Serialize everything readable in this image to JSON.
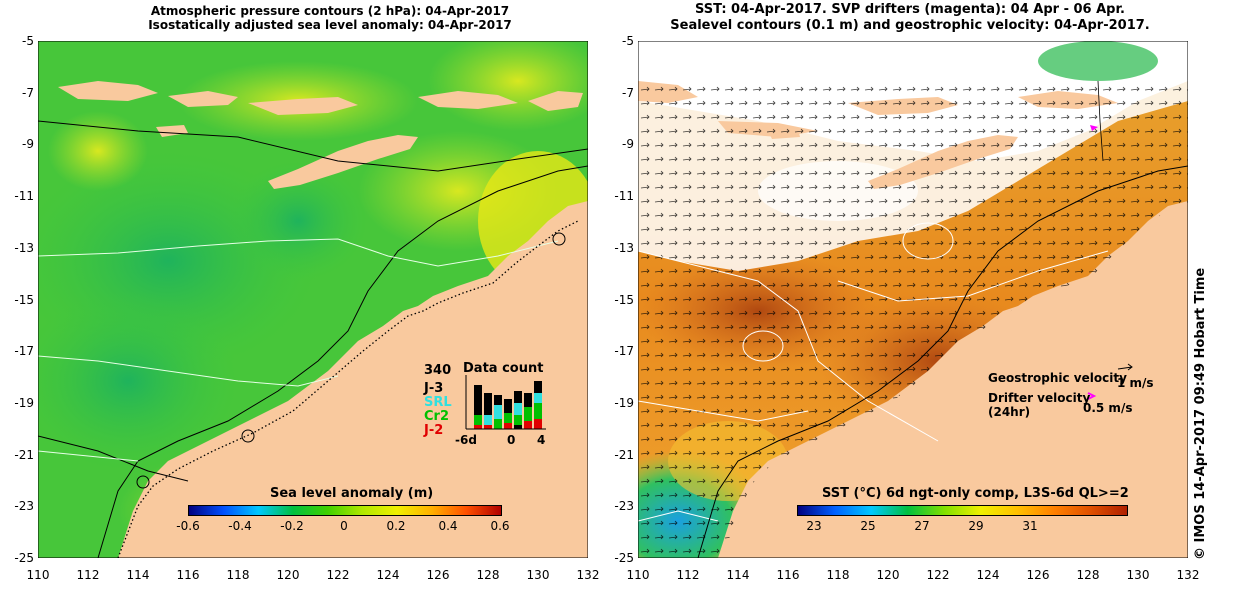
{
  "left_panel": {
    "title_line1": "Atmospheric pressure contours (2 hPa): 04-Apr-2017",
    "title_line2": "Isostatically adjusted sea level anomaly: 04-Apr-2017",
    "colorbar_label": "Sea level anomaly (m)",
    "colorbar_ticks": [
      "-0.6",
      "-0.4",
      "-0.2",
      "0",
      "0.2",
      "0.4",
      "0.6"
    ],
    "inset": {
      "title": "Data count",
      "total": "340",
      "missions": [
        {
          "name": "J-3",
          "color": "#000000"
        },
        {
          "name": "SRL",
          "color": "#30e0e0"
        },
        {
          "name": "Cr2",
          "color": "#00c000"
        },
        {
          "name": "J-2",
          "color": "#e00000"
        }
      ],
      "x_ticks": [
        "-6d",
        "0",
        "4"
      ]
    }
  },
  "right_panel": {
    "title_line1": "SST: 04-Apr-2017. SVP drifters (magenta): 04 Apr - 06 Apr.",
    "title_line2": "Sealevel contours (0.1 m) and geostrophic velocity: 04-Apr-2017.",
    "colorbar_label": "SST (°C) 6d ngt-only comp, L3S-6d QL>=2",
    "colorbar_ticks": [
      "23",
      "25",
      "27",
      "29",
      "31"
    ],
    "legend_geostrophic": "Geostrophic velocity",
    "legend_geostrophic_scale": "1 m/s",
    "legend_drifter": "Drifter velocity",
    "legend_drifter_period": "(24hr)",
    "legend_drifter_scale": "0.5 m/s"
  },
  "axes": {
    "y_ticks": [
      "-5",
      "-7",
      "-9",
      "-11",
      "-13",
      "-15",
      "-17",
      "-19",
      "-21",
      "-23",
      "-25"
    ],
    "x_ticks": [
      "110",
      "112",
      "114",
      "116",
      "118",
      "120",
      "122",
      "124",
      "126",
      "128",
      "130",
      "132"
    ]
  },
  "copyright": "© IMOS 14-Apr-2017 09:49 Hobart Time",
  "colors": {
    "land": "#f9c99e",
    "slaColorbar": [
      "#000080",
      "#0050ff",
      "#00c8ff",
      "#00c040",
      "#40d000",
      "#b0e800",
      "#f0f000",
      "#ffb000",
      "#ff5000",
      "#b00000"
    ],
    "sstColorbar": [
      "#000080",
      "#0060ff",
      "#00c8ff",
      "#00c040",
      "#80e000",
      "#f0f000",
      "#ffc000",
      "#ff8000",
      "#e05000",
      "#b02000"
    ]
  }
}
